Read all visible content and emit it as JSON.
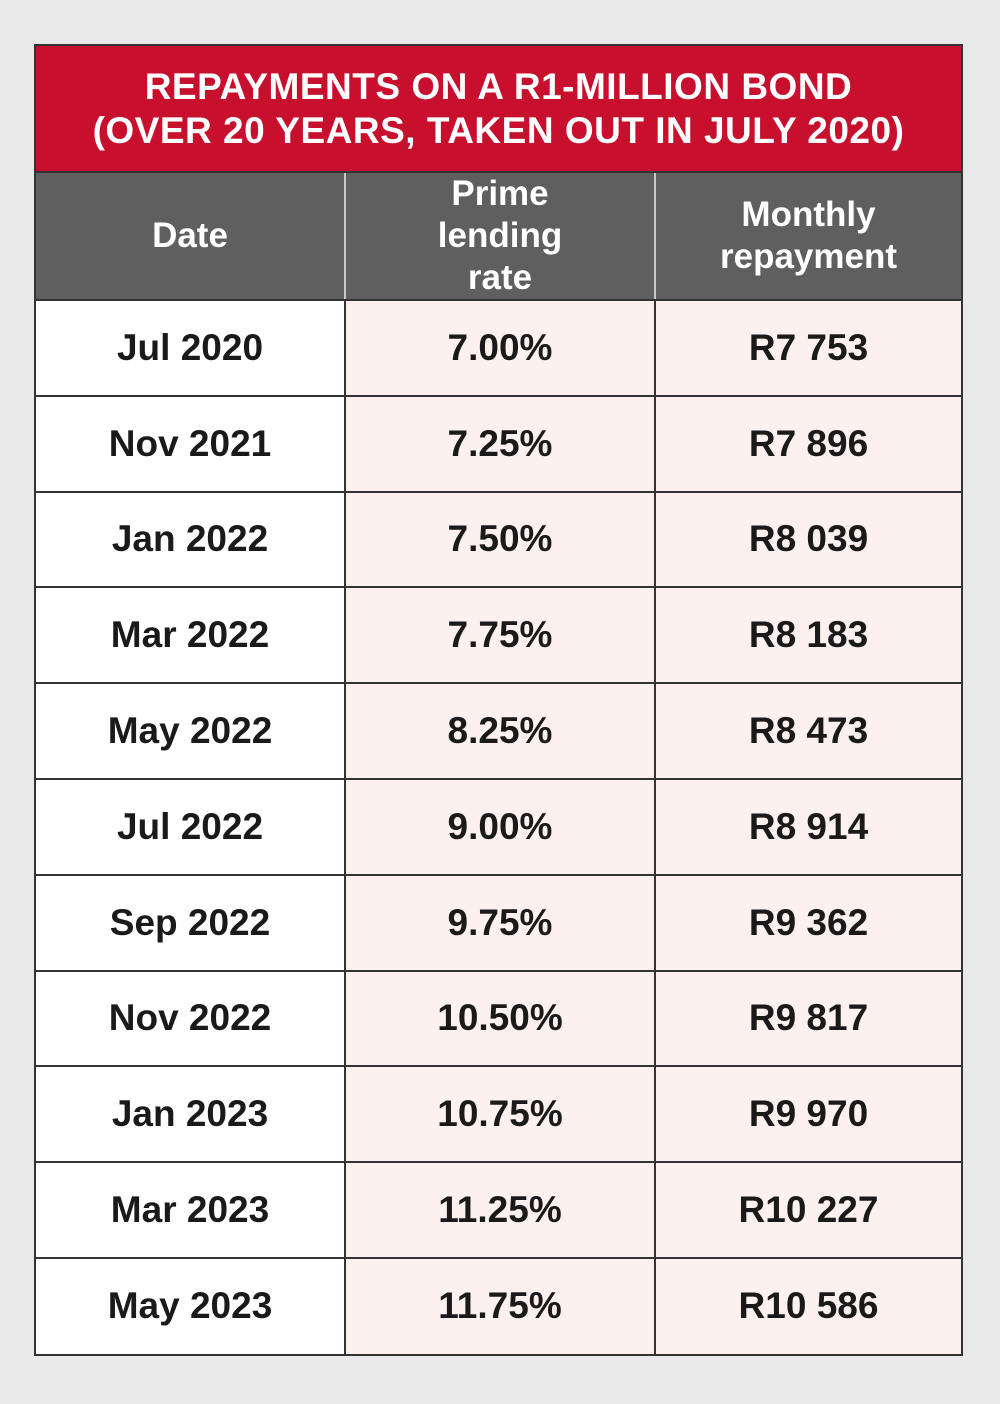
{
  "chart_data": {
    "type": "table",
    "title_lines": [
      "REPAYMENTS ON A R1-MILLION BOND",
      "(OVER 20 YEARS, TAKEN OUT IN JULY 2020)"
    ],
    "columns": [
      "Date",
      "Prime lending rate",
      "Monthly repayment"
    ],
    "rows": [
      {
        "date": "Jul 2020",
        "rate": "7.00%",
        "repayment": "R7 753"
      },
      {
        "date": "Nov 2021",
        "rate": "7.25%",
        "repayment": "R7 896"
      },
      {
        "date": "Jan 2022",
        "rate": "7.50%",
        "repayment": "R8 039"
      },
      {
        "date": "Mar 2022",
        "rate": "7.75%",
        "repayment": "R8 183"
      },
      {
        "date": "May 2022",
        "rate": "8.25%",
        "repayment": "R8 473"
      },
      {
        "date": "Jul 2022",
        "rate": "9.00%",
        "repayment": "R8 914"
      },
      {
        "date": "Sep 2022",
        "rate": "9.75%",
        "repayment": "R9 362"
      },
      {
        "date": "Nov 2022",
        "rate": "10.50%",
        "repayment": "R9 817"
      },
      {
        "date": "Jan 2023",
        "rate": "10.75%",
        "repayment": "R9 970"
      },
      {
        "date": "Mar 2023",
        "rate": "11.25%",
        "repayment": "R10 227"
      },
      {
        "date": "May 2023",
        "rate": "11.75%",
        "repayment": "R10 586"
      }
    ],
    "colors": {
      "title_background": "#c8102e",
      "header_background": "#5f5f60",
      "value_cell_background": "#fdf1ef"
    }
  }
}
